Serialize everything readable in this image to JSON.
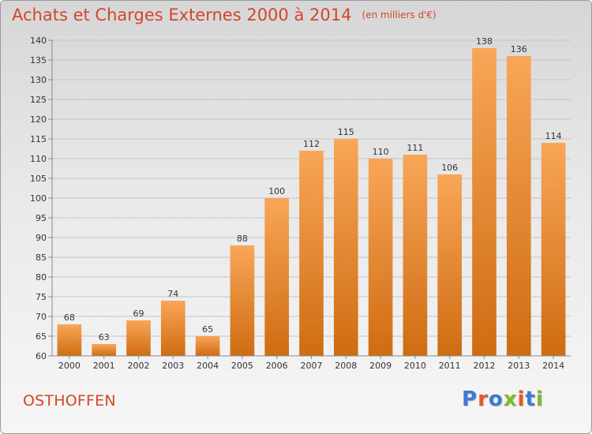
{
  "header": {
    "title": "Achats et Charges Externes 2000 à 2014",
    "subtitle": "(en milliers d'€)"
  },
  "footer": {
    "location": "OSTHOFFEN",
    "logo": {
      "text": "Proxiti",
      "colors": [
        "#3a7bd5",
        "#e8562a",
        "#3a7bd5",
        "#7cba2d",
        "#e8562a",
        "#3a7bd5",
        "#7cba2d"
      ]
    }
  },
  "colors": {
    "text_accent": "#d2462b",
    "bar_light": "#f8a658",
    "bar_dark": "#cf6c12"
  },
  "chart_data": {
    "type": "bar",
    "title": "Achats et Charges Externes 2000 à 2014",
    "subtitle": "(en milliers d'€)",
    "categories": [
      "2000",
      "2001",
      "2002",
      "2003",
      "2004",
      "2005",
      "2006",
      "2007",
      "2008",
      "2009",
      "2010",
      "2011",
      "2012",
      "2013",
      "2014"
    ],
    "values": [
      68,
      63,
      69,
      74,
      65,
      88,
      100,
      112,
      115,
      110,
      111,
      106,
      138,
      136,
      114
    ],
    "ylim": [
      60,
      140
    ],
    "yticks": [
      60,
      65,
      70,
      75,
      80,
      85,
      90,
      95,
      100,
      105,
      110,
      115,
      120,
      125,
      130,
      135,
      140
    ],
    "grid": true,
    "legend": "none"
  }
}
